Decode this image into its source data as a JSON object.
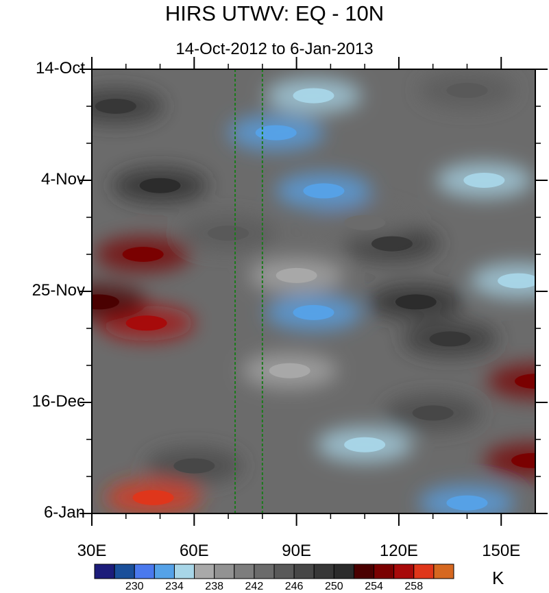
{
  "chart_data": {
    "type": "heatmap",
    "title": "HIRS UTWV: EQ - 10N",
    "subtitle": "14-Oct-2012 to 6-Jan-2013",
    "x_axis": {
      "range": [
        30,
        160
      ],
      "ticks": [
        30,
        60,
        90,
        120,
        150
      ],
      "tick_labels": [
        "30E",
        "60E",
        "90E",
        "120E",
        "150E"
      ]
    },
    "y_axis": {
      "range": [
        "2012-10-14",
        "2013-01-06"
      ],
      "ticks": [
        "2012-10-14",
        "2012-11-04",
        "2012-11-25",
        "2012-12-16",
        "2013-01-06"
      ],
      "tick_labels": [
        "14-Oct",
        "4-Nov",
        "25-Nov",
        "16-Dec",
        "6-Jan"
      ],
      "direction": "time increases downward"
    },
    "reference_lines": [
      {
        "x": 72,
        "style": "dashed",
        "color": "#1a7a1a"
      },
      {
        "x": 80,
        "style": "dashed",
        "color": "#1a7a1a"
      }
    ],
    "colorbar": {
      "units": "K",
      "levels": [
        228,
        230,
        232,
        234,
        236,
        238,
        240,
        242,
        244,
        246,
        248,
        250,
        252,
        254,
        256,
        258
      ],
      "labels": [
        "230",
        "234",
        "238",
        "242",
        "246",
        "250",
        "254",
        "258"
      ],
      "colors": [
        "#1c1c7a",
        "#1a4f9a",
        "#4a79ee",
        "#55a2e8",
        "#a8d6e8",
        "#a9a9a9",
        "#929292",
        "#7d7d7d",
        "#6b6b6b",
        "#595959",
        "#474747",
        "#373737",
        "#2b2b2b",
        "#4a0000",
        "#7a0000",
        "#a80a0a",
        "#e0361a",
        "#d66820"
      ]
    },
    "features": [
      {
        "x": 37,
        "date": "2012-10-21",
        "value": 249
      },
      {
        "x": 45,
        "date": "2012-11-18",
        "value": 255
      },
      {
        "x": 46,
        "date": "2012-12-01",
        "value": 256
      },
      {
        "x": 32,
        "date": "2012-11-27",
        "value": 253
      },
      {
        "x": 48,
        "date": "2013-01-03",
        "value": 258
      },
      {
        "x": 60,
        "date": "2012-12-28",
        "value": 247
      },
      {
        "x": 50,
        "date": "2012-11-05",
        "value": 250
      },
      {
        "x": 84,
        "date": "2012-10-26",
        "value": 232
      },
      {
        "x": 95,
        "date": "2012-10-19",
        "value": 234
      },
      {
        "x": 98,
        "date": "2012-11-06",
        "value": 233
      },
      {
        "x": 90,
        "date": "2012-11-22",
        "value": 236
      },
      {
        "x": 95,
        "date": "2012-11-29",
        "value": 232
      },
      {
        "x": 88,
        "date": "2012-12-10",
        "value": 236
      },
      {
        "x": 110,
        "date": "2012-12-24",
        "value": 235
      },
      {
        "x": 140,
        "date": "2013-01-04",
        "value": 232
      },
      {
        "x": 145,
        "date": "2012-11-04",
        "value": 234
      },
      {
        "x": 155,
        "date": "2012-11-23",
        "value": 235
      },
      {
        "x": 125,
        "date": "2012-11-27",
        "value": 250
      },
      {
        "x": 118,
        "date": "2012-11-16",
        "value": 249
      },
      {
        "x": 135,
        "date": "2012-12-04",
        "value": 248
      },
      {
        "x": 140,
        "date": "2012-10-18",
        "value": 244
      },
      {
        "x": 160,
        "date": "2012-12-12",
        "value": 255
      },
      {
        "x": 159,
        "date": "2012-12-27",
        "value": 255
      },
      {
        "x": 110,
        "date": "2012-11-12",
        "value": 242
      },
      {
        "x": 130,
        "date": "2012-12-18",
        "value": 246
      },
      {
        "x": 70,
        "date": "2012-11-14",
        "value": 245
      }
    ]
  }
}
